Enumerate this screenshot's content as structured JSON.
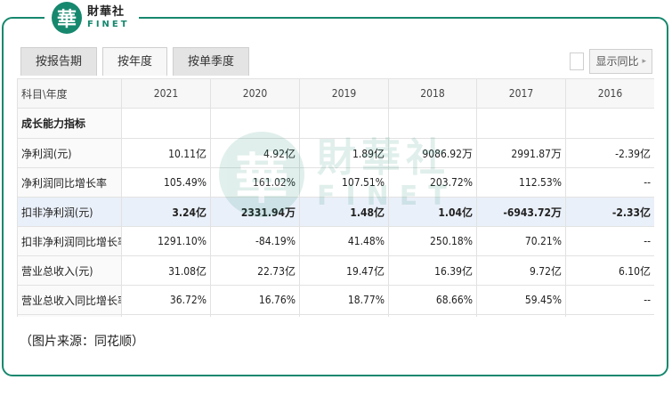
{
  "logo": {
    "glyph": "華",
    "cn": "財華社",
    "en": "FINET"
  },
  "tabs": [
    {
      "label": "按报告期",
      "active": false
    },
    {
      "label": "按年度",
      "active": true
    },
    {
      "label": "按单季度",
      "active": false
    }
  ],
  "toggle": {
    "label": "显示同比",
    "checked": false
  },
  "table": {
    "corner": "科目\\年度",
    "years": [
      "2021",
      "2020",
      "2019",
      "2018",
      "2017",
      "2016"
    ],
    "section_label": "成长能力指标",
    "rows": [
      {
        "label": "净利润(元)",
        "values": [
          "10.11亿",
          "4.92亿",
          "1.89亿",
          "9086.92万",
          "2991.87万",
          "-2.39亿"
        ],
        "highlight": false
      },
      {
        "label": "净利润同比增长率",
        "values": [
          "105.49%",
          "161.02%",
          "107.51%",
          "203.72%",
          "112.53%",
          "--"
        ],
        "highlight": false
      },
      {
        "label": "扣非净利润(元)",
        "values": [
          "3.24亿",
          "2331.94万",
          "1.48亿",
          "1.04亿",
          "-6943.72万",
          "-2.33亿"
        ],
        "highlight": true
      },
      {
        "label": "扣非净利润同比增长率",
        "values": [
          "1291.10%",
          "-84.19%",
          "41.48%",
          "250.18%",
          "70.21%",
          "--"
        ],
        "highlight": false
      },
      {
        "label": "营业总收入(元)",
        "values": [
          "31.08亿",
          "22.73亿",
          "19.47亿",
          "16.39亿",
          "9.72亿",
          "6.10亿"
        ],
        "highlight": false
      },
      {
        "label": "营业总收入同比增长率",
        "values": [
          "36.72%",
          "16.76%",
          "18.77%",
          "68.66%",
          "59.45%",
          "--"
        ],
        "highlight": false
      },
      {
        "label": "",
        "values": [
          "",
          "",
          "",
          "",
          "",
          ""
        ],
        "highlight": false
      }
    ]
  },
  "watermark": {
    "glyph": "華",
    "cn": "財華社",
    "en": "FINET"
  },
  "caption": "（图片来源：同花顺）",
  "colors": {
    "brand": "#16886e",
    "highlight_row": "#eaf0f9"
  }
}
